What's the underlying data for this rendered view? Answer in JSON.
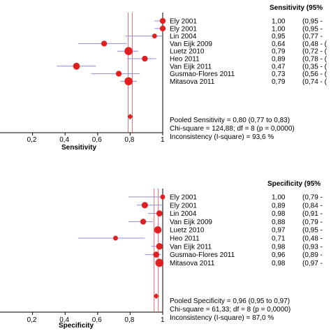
{
  "colors": {
    "point": "#e02020",
    "ci_line": "#8c8cdc",
    "pooled_line": "#e05050",
    "axis": "#000000"
  },
  "chart_data": [
    {
      "type": "forest",
      "header": "Sensitivity (95%",
      "xlabel": "Sensitivity",
      "xlim": [
        0,
        1
      ],
      "ticks": [
        "0,2",
        "0,4",
        "0,6",
        "0,8",
        "1"
      ],
      "tick_values": [
        0.2,
        0.4,
        0.6,
        0.8,
        1.0
      ],
      "pooled_value": 0.8,
      "studies": [
        {
          "name": "Ely 2001",
          "value": 1.0,
          "ci": [
            0.95,
            1.0
          ],
          "weight": 0.55,
          "value_label": "1,00",
          "ci_label": "(0,95 -"
        },
        {
          "name": "Ely 2001",
          "value": 1.0,
          "ci": [
            0.95,
            1.0
          ],
          "weight": 0.55,
          "value_label": "1,00",
          "ci_label": "(0,95 -"
        },
        {
          "name": "Lin 2004",
          "value": 0.95,
          "ci": [
            0.77,
            1.0
          ],
          "weight": 0.35,
          "value_label": "0,95",
          "ci_label": "(0,77 -"
        },
        {
          "name": "Van Eijk 2009",
          "value": 0.64,
          "ci": [
            0.48,
            0.78
          ],
          "weight": 0.55,
          "value_label": "0,64",
          "ci_label": "(0,48 - ("
        },
        {
          "name": "Luetz 2010",
          "value": 0.79,
          "ci": [
            0.72,
            0.85
          ],
          "weight": 1.0,
          "value_label": "0,79",
          "ci_label": "(0,72 - ("
        },
        {
          "name": "Heo 2011",
          "value": 0.89,
          "ci": [
            0.78,
            0.96
          ],
          "weight": 0.55,
          "value_label": "0,89",
          "ci_label": "(0,78 - ("
        },
        {
          "name": "Van Eijk 2011",
          "value": 0.47,
          "ci": [
            0.35,
            0.59
          ],
          "weight": 0.75,
          "value_label": "0,47",
          "ci_label": "(0,35 - ("
        },
        {
          "name": "Gusmao-Flores 2011",
          "value": 0.73,
          "ci": [
            0.56,
            0.86
          ],
          "weight": 0.55,
          "value_label": "0,73",
          "ci_label": "(0,56 - ("
        },
        {
          "name": "Mitasova 2011",
          "value": 0.79,
          "ci": [
            0.74,
            0.84
          ],
          "weight": 1.0,
          "value_label": "0,79",
          "ci_label": "(0,74 - ("
        }
      ],
      "pooled_text": "Pooled Sensitivity = 0,80 (0,77 to 0,83)",
      "chi_text": "Chi-square = 124,88; df = 8 (p = 0,0000)",
      "incon_text": "Inconsistency (I-square) = 93,6 %"
    },
    {
      "type": "forest",
      "header": "Specificity (95%",
      "xlabel": "Specificity",
      "xlim": [
        0,
        1
      ],
      "ticks": [
        "0,2",
        "0,4",
        "0,6",
        "0,8",
        "1"
      ],
      "tick_values": [
        0.2,
        0.4,
        0.6,
        0.8,
        1.0
      ],
      "pooled_value": 0.96,
      "studies": [
        {
          "name": "Ely 2001",
          "value": 1.0,
          "ci": [
            0.79,
            1.0
          ],
          "weight": 0.35,
          "value_label": "1,00",
          "ci_label": "(0,79 -"
        },
        {
          "name": "Ely 2001",
          "value": 0.89,
          "ci": [
            0.84,
            1.0
          ],
          "weight": 0.65,
          "value_label": "0,89",
          "ci_label": "(0,84 -"
        },
        {
          "name": "Lin 2004",
          "value": 0.98,
          "ci": [
            0.91,
            1.0
          ],
          "weight": 0.6,
          "value_label": "0,98",
          "ci_label": "(0,91 -"
        },
        {
          "name": "Van Eijk 2009",
          "value": 0.88,
          "ci": [
            0.79,
            0.94
          ],
          "weight": 0.55,
          "value_label": "0,88",
          "ci_label": "(0,79 -"
        },
        {
          "name": "Luetz 2010",
          "value": 0.97,
          "ci": [
            0.95,
            0.99
          ],
          "weight": 0.85,
          "value_label": "0,97",
          "ci_label": "(0,95 -"
        },
        {
          "name": "Heo 2011",
          "value": 0.71,
          "ci": [
            0.48,
            0.89
          ],
          "weight": 0.35,
          "value_label": "0,71",
          "ci_label": "(0,48 -"
        },
        {
          "name": "Van Eijk 2011",
          "value": 0.98,
          "ci": [
            0.93,
            1.0
          ],
          "weight": 0.7,
          "value_label": "0,98",
          "ci_label": "(0,93 -"
        },
        {
          "name": "Gusmao-Flores 2011",
          "value": 0.96,
          "ci": [
            0.89,
            0.99
          ],
          "weight": 0.6,
          "value_label": "0,96",
          "ci_label": "(0,89 -"
        },
        {
          "name": "Mitasova 2011",
          "value": 0.98,
          "ci": [
            0.97,
            0.99
          ],
          "weight": 1.0,
          "value_label": "0,98",
          "ci_label": "(0,97 -"
        }
      ],
      "pooled_text": "Pooled Specificity = 0,96 (0,95 to 0,97)",
      "chi_text": "Chi-square = 61,33; df =  8 (p = 0,0000)",
      "incon_text": "Inconsistency (I-square) = 87,0 %"
    }
  ]
}
